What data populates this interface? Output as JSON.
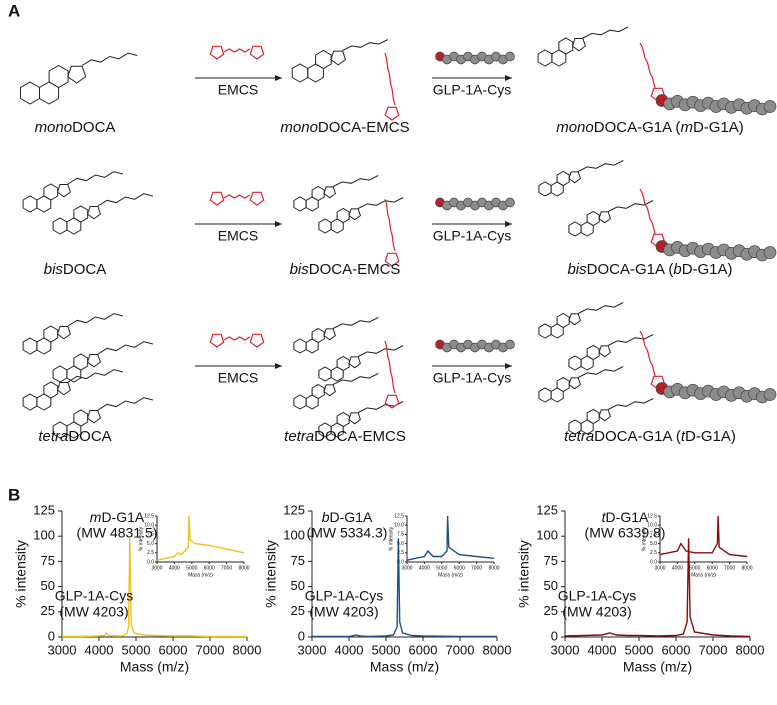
{
  "panel_a": {
    "letter": "A",
    "rows": [
      {
        "start": [
          {
            "text": "mono",
            "italic": true
          },
          {
            "text": "DOCA"
          }
        ],
        "middle": [
          {
            "text": "mono",
            "italic": true
          },
          {
            "text": "DOCA-EMCS"
          }
        ],
        "product": [
          {
            "text": "mono",
            "italic": true
          },
          {
            "text": "DOCA-G1A ("
          },
          {
            "text": "m",
            "italic": true
          },
          {
            "text": "D-G1A)"
          }
        ],
        "reagent1": "EMCS",
        "reagent2": "GLP-1A-Cys"
      },
      {
        "start": [
          {
            "text": "bis",
            "italic": true
          },
          {
            "text": "DOCA"
          }
        ],
        "middle": [
          {
            "text": "bis",
            "italic": true
          },
          {
            "text": "DOCA-EMCS"
          }
        ],
        "product": [
          {
            "text": "bis",
            "italic": true
          },
          {
            "text": "DOCA-G1A ("
          },
          {
            "text": "b",
            "italic": true
          },
          {
            "text": "D-G1A)"
          }
        ],
        "reagent1": "EMCS",
        "reagent2": "GLP-1A-Cys"
      },
      {
        "start": [
          {
            "text": "tetra",
            "italic": true
          },
          {
            "text": "DOCA"
          }
        ],
        "middle": [
          {
            "text": "tetra",
            "italic": true
          },
          {
            "text": "DOCA-EMCS"
          }
        ],
        "product": [
          {
            "text": "tetra",
            "italic": true
          },
          {
            "text": "DOCA-G1A ("
          },
          {
            "text": "t",
            "italic": true
          },
          {
            "text": "D-G1A)"
          }
        ],
        "reagent1": "EMCS",
        "reagent2": "GLP-1A-Cys"
      }
    ]
  },
  "panel_b": {
    "letter": "B"
  },
  "chart_data": [
    {
      "type": "line",
      "title": [
        {
          "text": "m",
          "italic": true
        },
        {
          "text": "D-G1A"
        }
      ],
      "subtitle": "(MW 4831.5)",
      "annotations": [
        "GLP-1A-Cys",
        "(MW 4203)"
      ],
      "xlabel": "Mass (m/z)",
      "ylabel": "% intensity",
      "color": "#f0c020",
      "x": [
        3000,
        3500,
        4000,
        4150,
        4203,
        4260,
        4400,
        4600,
        4750,
        4800,
        4831.5,
        4870,
        4950,
        5200,
        5500,
        6000,
        6500,
        7000,
        7500,
        8000
      ],
      "values": [
        0.5,
        0.5,
        1,
        1.5,
        4,
        1.5,
        1,
        1,
        3,
        10,
        98,
        12,
        4,
        2,
        1.5,
        1,
        1,
        0.5,
        0.5,
        0.5
      ],
      "xlim": [
        3000,
        8000
      ],
      "xticks": [
        3000,
        4000,
        5000,
        6000,
        7000,
        8000
      ],
      "ylim": [
        0,
        125
      ],
      "yticks": [
        0,
        25,
        50,
        75,
        100,
        125
      ],
      "inset": {
        "xlabel": "Mass (m/z)",
        "ylabel": "% intensity",
        "x": [
          3000,
          3500,
          4000,
          4203,
          4400,
          4800,
          4831.5,
          4900,
          5200,
          6000,
          7000,
          8000
        ],
        "values": [
          0.5,
          1,
          1.5,
          2.5,
          2,
          4,
          12.5,
          6,
          5,
          4.5,
          3.5,
          2.5
        ],
        "xlim": [
          3000,
          8000
        ],
        "xticks": [
          3000,
          4000,
          5000,
          6000,
          7000,
          8000
        ],
        "ylim": [
          0,
          12.5
        ],
        "yticks": [
          {
            "value": 0,
            "label": "0.0"
          },
          2.5,
          {
            "value": 5,
            "label": "5.0"
          },
          7.5,
          {
            "value": 10,
            "label": "10.0"
          },
          12.5
        ]
      }
    },
    {
      "type": "line",
      "title": [
        {
          "text": "b",
          "italic": true
        },
        {
          "text": "D-G1A"
        }
      ],
      "subtitle": "(MW 5334.3)",
      "annotations": [
        "GLP-1A-Cys",
        "(MW 4203)"
      ],
      "xlabel": "Mass (m/z)",
      "ylabel": "% intensity",
      "color": "#1f4e8c",
      "x": [
        3000,
        3500,
        4000,
        4203,
        4300,
        4500,
        5000,
        5200,
        5300,
        5334.3,
        5370,
        5450,
        5700,
        6000,
        7000,
        8000
      ],
      "values": [
        0.5,
        0.5,
        0.5,
        2,
        1,
        0.5,
        1,
        2,
        10,
        98,
        15,
        4,
        1.5,
        1,
        0.5,
        0.5
      ],
      "xlim": [
        3000,
        8000
      ],
      "xticks": [
        3000,
        4000,
        5000,
        6000,
        7000,
        8000
      ],
      "ylim": [
        0,
        125
      ],
      "yticks": [
        0,
        25,
        50,
        75,
        100,
        125
      ],
      "inset": {
        "xlabel": "Mass (m/z)",
        "ylabel": "% intensity",
        "x": [
          3000,
          3500,
          4000,
          4203,
          4500,
          5000,
          5300,
          5334.3,
          5400,
          6000,
          7000,
          8000
        ],
        "values": [
          0.5,
          1,
          1.5,
          3,
          1.5,
          1.5,
          3,
          12.5,
          4,
          2,
          1.5,
          1
        ],
        "xlim": [
          3000,
          8000
        ],
        "xticks": [
          3000,
          4000,
          5000,
          6000,
          7000,
          8000
        ],
        "ylim": [
          0,
          12.5
        ],
        "yticks": [
          {
            "value": 0,
            "label": "0.0"
          },
          2.5,
          {
            "value": 5,
            "label": "5.0"
          },
          7.5,
          {
            "value": 10,
            "label": "10.0"
          },
          12.5
        ]
      }
    },
    {
      "type": "line",
      "title": [
        {
          "text": "t",
          "italic": true
        },
        {
          "text": "D-G1A"
        }
      ],
      "subtitle": "(MW 6339.8)",
      "annotations": [
        "GLP-1A-Cys",
        "(MW 4203)"
      ],
      "xlabel": "Mass (m/z)",
      "ylabel": "% intensity",
      "color": "#8b0a0a",
      "x": [
        3000,
        3500,
        4000,
        4203,
        4400,
        4700,
        5000,
        5500,
        6000,
        6200,
        6300,
        6339.8,
        6380,
        6500,
        7000,
        7500,
        8000
      ],
      "values": [
        1,
        1.5,
        2,
        4,
        2,
        1.5,
        1.5,
        1,
        1.5,
        3,
        15,
        98,
        20,
        5,
        2,
        1,
        0.5
      ],
      "xlim": [
        3000,
        8000
      ],
      "xticks": [
        3000,
        4000,
        5000,
        6000,
        7000,
        8000
      ],
      "ylim": [
        0,
        125
      ],
      "yticks": [
        0,
        25,
        50,
        75,
        100,
        125
      ],
      "inset": {
        "xlabel": "Mass (m/z)",
        "ylabel": "% intensity",
        "x": [
          3000,
          4000,
          4203,
          4500,
          5000,
          6000,
          6300,
          6339.8,
          6400,
          7000,
          8000
        ],
        "values": [
          2,
          3,
          5,
          3,
          2.5,
          2.5,
          5,
          12.5,
          4,
          2,
          1.5
        ],
        "xlim": [
          3000,
          8000
        ],
        "xticks": [
          3000,
          4000,
          5000,
          6000,
          7000,
          8000
        ],
        "ylim": [
          0,
          12.5
        ],
        "yticks": [
          {
            "value": 0,
            "label": "0.0"
          },
          2.5,
          {
            "value": 5,
            "label": "5.0"
          },
          7.5,
          {
            "value": 10,
            "label": "10.0"
          },
          12.5
        ]
      }
    }
  ]
}
